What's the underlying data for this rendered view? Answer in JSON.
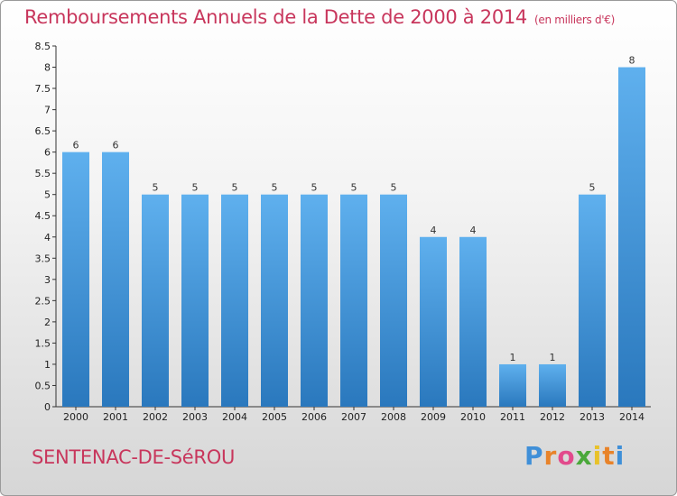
{
  "chart_data": {
    "type": "bar",
    "title": "Remboursements Annuels de la Dette de 2000 à 2014",
    "subtitle": "(en milliers d'€)",
    "categories": [
      "2000",
      "2001",
      "2002",
      "2003",
      "2004",
      "2005",
      "2006",
      "2007",
      "2008",
      "2009",
      "2010",
      "2011",
      "2012",
      "2013",
      "2014"
    ],
    "values": [
      6,
      6,
      5,
      5,
      5,
      5,
      5,
      5,
      5,
      4,
      4,
      1,
      1,
      5,
      8
    ],
    "data_labels": [
      "6",
      "6",
      "5",
      "5",
      "5",
      "5",
      "5",
      "5",
      "5",
      "4",
      "4",
      "1",
      "1",
      "5",
      "8"
    ],
    "y_ticks": [
      "0",
      "0.5",
      "1",
      "1.5",
      "2",
      "2.5",
      "3",
      "3.5",
      "4",
      "4.5",
      "5",
      "5.5",
      "6",
      "6.5",
      "7",
      "7.5",
      "8",
      "8.5"
    ],
    "ylim": [
      0,
      8.5
    ],
    "grid": false,
    "bar_color": "#3f95d8"
  },
  "footer": {
    "commune": "SENTENAC-DE-SéROU",
    "logo_letters": [
      "P",
      "r",
      "o",
      "x",
      "i",
      "t",
      "i"
    ],
    "logo_colors": [
      "#3f8fd8",
      "#e8832a",
      "#e24a8c",
      "#4aa83b",
      "#e8c22a",
      "#e8832a",
      "#3f8fd8"
    ]
  }
}
